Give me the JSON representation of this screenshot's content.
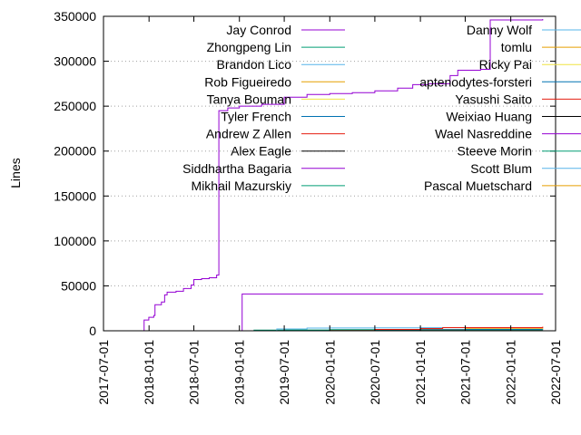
{
  "chart_data": {
    "type": "line",
    "title": "",
    "xlabel": "",
    "ylabel": "Lines",
    "x_type": "date",
    "xlim": [
      "2017-07-01",
      "2022-07-01"
    ],
    "ylim": [
      0,
      350000
    ],
    "x_ticks": [
      "2017-07-01",
      "2018-01-01",
      "2018-07-01",
      "2019-01-01",
      "2019-07-01",
      "2020-01-01",
      "2020-07-01",
      "2021-01-01",
      "2021-07-01",
      "2022-01-01",
      "2022-07-01"
    ],
    "y_ticks": [
      0,
      50000,
      100000,
      150000,
      200000,
      250000,
      300000,
      350000
    ],
    "grid": "horizontal dotted",
    "legend_position": "top, two columns",
    "series": [
      {
        "name": "Jay Conrod",
        "color": "#9400d3",
        "points": [
          [
            "2017-12-10",
            0
          ],
          [
            "2017-12-12",
            12000
          ],
          [
            "2017-12-31",
            15000
          ],
          [
            "2018-01-20",
            17000
          ],
          [
            "2018-01-25",
            29000
          ],
          [
            "2018-02-20",
            32000
          ],
          [
            "2018-03-05",
            40000
          ],
          [
            "2018-03-15",
            43000
          ],
          [
            "2018-04-20",
            44000
          ],
          [
            "2018-05-20",
            47000
          ],
          [
            "2018-06-20",
            51000
          ],
          [
            "2018-07-01",
            57000
          ],
          [
            "2018-08-01",
            58000
          ],
          [
            "2018-09-01",
            59000
          ],
          [
            "2018-10-01",
            62000
          ],
          [
            "2018-10-10",
            245000
          ],
          [
            "2018-11-15",
            248000
          ],
          [
            "2019-01-01",
            250000
          ],
          [
            "2019-04-01",
            252000
          ],
          [
            "2019-07-01",
            260000
          ],
          [
            "2019-10-01",
            263000
          ],
          [
            "2020-01-01",
            264000
          ],
          [
            "2020-04-01",
            265000
          ],
          [
            "2020-07-01",
            267000
          ],
          [
            "2020-10-01",
            270000
          ],
          [
            "2020-12-01",
            274000
          ],
          [
            "2021-02-01",
            275000
          ],
          [
            "2021-05-01",
            284000
          ],
          [
            "2021-06-01",
            290000
          ],
          [
            "2021-09-01",
            291000
          ],
          [
            "2021-10-10",
            346000
          ],
          [
            "2022-05-10",
            347000
          ]
        ]
      },
      {
        "name": "Zhongpeng Lin",
        "color": "#009e73",
        "points": [
          [
            "2019-01-20",
            0
          ],
          [
            "2019-03-01",
            700
          ],
          [
            "2019-07-01",
            900
          ],
          [
            "2020-01-01",
            1200
          ],
          [
            "2020-07-01",
            1400
          ],
          [
            "2021-01-01",
            1500
          ],
          [
            "2022-05-10",
            1600
          ]
        ]
      },
      {
        "name": "Brandon Lico",
        "color": "#56b4e9",
        "points": [
          [
            "2019-01-20",
            0
          ],
          [
            "2019-06-01",
            2000
          ],
          [
            "2019-10-01",
            3000
          ],
          [
            "2020-01-01",
            3200
          ],
          [
            "2020-07-01",
            3300
          ],
          [
            "2021-01-01",
            3400
          ],
          [
            "2022-05-10",
            3500
          ]
        ]
      },
      {
        "name": "Rob Figueiredo",
        "color": "#e69f00",
        "points": [
          [
            "2019-03-01",
            0
          ],
          [
            "2020-07-01",
            800
          ],
          [
            "2021-01-01",
            1500
          ],
          [
            "2021-07-01",
            2800
          ],
          [
            "2022-05-10",
            3100
          ]
        ]
      },
      {
        "name": "Tanya Bouman",
        "color": "#f0e442",
        "points": [
          [
            "2019-04-01",
            0
          ],
          [
            "2020-01-01",
            300
          ],
          [
            "2022-05-10",
            500
          ]
        ]
      },
      {
        "name": "Tyler French",
        "color": "#0072b2",
        "points": [
          [
            "2019-05-01",
            0
          ],
          [
            "2020-07-01",
            800
          ],
          [
            "2021-01-01",
            1200
          ],
          [
            "2022-05-10",
            1400
          ]
        ]
      },
      {
        "name": "Andrew Z Allen",
        "color": "#e51e10",
        "points": [
          [
            "2019-07-01",
            0
          ],
          [
            "2020-07-01",
            1500
          ],
          [
            "2021-01-01",
            2500
          ],
          [
            "2021-04-01",
            3500
          ],
          [
            "2022-05-10",
            4500
          ]
        ]
      },
      {
        "name": "Alex Eagle",
        "color": "#000000",
        "points": [
          [
            "2019-07-01",
            0
          ],
          [
            "2020-01-01",
            200
          ],
          [
            "2022-05-10",
            400
          ]
        ]
      },
      {
        "name": "Siddhartha Bagaria",
        "color": "#9400d3",
        "points": [
          [
            "2019-01-10",
            0
          ],
          [
            "2019-01-12",
            41000
          ],
          [
            "2022-05-10",
            41500
          ]
        ]
      },
      {
        "name": "Mikhail Mazurskiy",
        "color": "#009e73",
        "points": [
          [
            "2019-07-01",
            0
          ],
          [
            "2020-07-01",
            300
          ],
          [
            "2022-05-10",
            500
          ]
        ]
      },
      {
        "name": "Danny Wolf",
        "color": "#56b4e9",
        "points": [
          [
            "2020-01-01",
            0
          ],
          [
            "2022-05-10",
            300
          ]
        ]
      },
      {
        "name": "tomlu",
        "color": "#e69f00",
        "points": [
          [
            "2020-07-01",
            0
          ],
          [
            "2022-05-10",
            300
          ]
        ]
      },
      {
        "name": "Ricky Pai",
        "color": "#f0e442",
        "points": [
          [
            "2021-01-01",
            0
          ],
          [
            "2022-05-10",
            250
          ]
        ]
      },
      {
        "name": "aptenodytes-forsteri",
        "color": "#0072b2",
        "points": [
          [
            "2021-07-01",
            0
          ],
          [
            "2022-05-10",
            250
          ]
        ]
      },
      {
        "name": "Yasushi Saito",
        "color": "#e51e10",
        "points": [
          [
            "2020-07-01",
            0
          ],
          [
            "2022-05-10",
            200
          ]
        ]
      },
      {
        "name": "Weixiao Huang",
        "color": "#000000",
        "points": [
          [
            "2021-01-01",
            0
          ],
          [
            "2022-05-10",
            150
          ]
        ]
      },
      {
        "name": "Wael Nasreddine",
        "color": "#9400d3",
        "points": [
          [
            "2021-07-01",
            0
          ],
          [
            "2022-05-10",
            150
          ]
        ]
      },
      {
        "name": "Steeve Morin",
        "color": "#009e73",
        "points": [
          [
            "2021-07-01",
            0
          ],
          [
            "2022-05-10",
            120
          ]
        ]
      },
      {
        "name": "Scott Blum",
        "color": "#56b4e9",
        "points": [
          [
            "2022-01-01",
            0
          ],
          [
            "2022-05-10",
            100
          ]
        ]
      },
      {
        "name": "Pascal Muetschard",
        "color": "#e69f00",
        "points": [
          [
            "2022-01-01",
            0
          ],
          [
            "2022-05-10",
            100
          ]
        ]
      }
    ]
  }
}
